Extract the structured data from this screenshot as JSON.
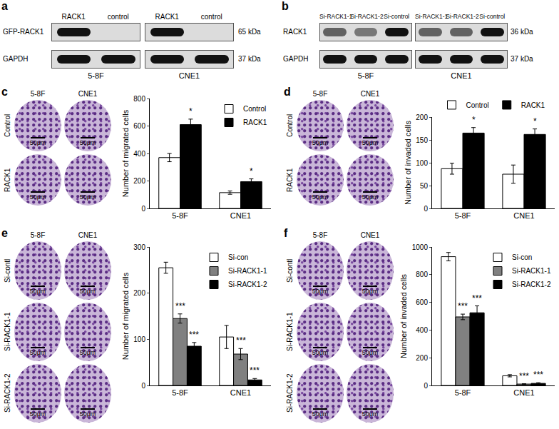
{
  "figure": {
    "panels": [
      {
        "letter": "a",
        "row_names": [
          "GFP-RACK1",
          "GAPDH"
        ],
        "sizes": [
          "65 kDa",
          "37 kDa"
        ],
        "blots": [
          {
            "cell_line": "5-8F",
            "lanes": [
              "RACK1",
              "control"
            ],
            "intensity": [
              [
                1,
                0
              ],
              [
                1,
                1
              ]
            ]
          },
          {
            "cell_line": "CNE1",
            "lanes": [
              "RACK1",
              "control"
            ],
            "intensity": [
              [
                1,
                0
              ],
              [
                1,
                1
              ]
            ]
          }
        ]
      },
      {
        "letter": "b",
        "row_names": [
          "RACK1",
          "GAPDH"
        ],
        "sizes": [
          "36 kDa",
          "37 kDa"
        ],
        "blots": [
          {
            "cell_line": "5-8F",
            "lanes": [
              "Si-RACK1-1",
              "Si-RACK1-2",
              "Si-control"
            ],
            "intensity": [
              [
                0.6,
                0.5,
                1
              ],
              [
                1,
                1,
                1
              ]
            ]
          },
          {
            "cell_line": "CNE1",
            "lanes": [
              "Si-RACK1-1",
              "Si-RACK1-2",
              "Si-control"
            ],
            "intensity": [
              [
                0.6,
                0.6,
                1
              ],
              [
                1,
                1,
                1
              ]
            ]
          }
        ]
      },
      {
        "letter": "c",
        "columns": [
          "5-8F",
          "CNE1"
        ],
        "rows": [
          "Control",
          "RACK1"
        ],
        "scale_bar": "50μm"
      },
      {
        "letter": "d",
        "columns": [
          "5-8F",
          "CNE1"
        ],
        "rows": [
          "Control",
          "RACK1"
        ],
        "scale_bar": "50μm"
      },
      {
        "letter": "e",
        "columns": [
          "5-8F",
          "CNE1"
        ],
        "rows": [
          "Si-contl",
          "Si-RACK1-1",
          "Si-RACK1-2"
        ],
        "scale_bar": "50μm"
      },
      {
        "letter": "f",
        "columns": [
          "5-8F",
          "CNE1"
        ],
        "rows": [
          "Si-contl",
          "Si-RACK1-1",
          "Si-RACK1-2"
        ],
        "scale_bar": "50μm"
      }
    ]
  },
  "chart_data": [
    {
      "type": "bar",
      "ylabel": "Number of migrated cells",
      "categories": [
        "5-8F",
        "CNE1"
      ],
      "series": [
        {
          "name": "Control",
          "color": "#ffffff",
          "values": [
            370,
            115
          ],
          "error": [
            30,
            12
          ]
        },
        {
          "name": "RACK1",
          "color": "#000000",
          "values": [
            610,
            195
          ],
          "error": [
            40,
            20
          ],
          "significance": "*"
        }
      ],
      "ylim": [
        0,
        800
      ],
      "yticks": [
        0,
        200,
        400,
        600,
        800
      ],
      "legend": "upper right"
    },
    {
      "type": "bar",
      "ylabel": "Number of invaded cells",
      "categories": [
        "5-8F",
        "CNE1"
      ],
      "series": [
        {
          "name": "Control",
          "color": "#ffffff",
          "values": [
            87,
            75
          ],
          "error": [
            12,
            20
          ]
        },
        {
          "name": "RACK1",
          "color": "#000000",
          "values": [
            165,
            162
          ],
          "error": [
            12,
            12
          ],
          "significance": "*"
        }
      ],
      "ylim": [
        0,
        200
      ],
      "yticks": [
        0,
        50,
        100,
        150,
        200
      ],
      "legend": "top"
    },
    {
      "type": "bar",
      "ylabel": "Number of migrated cells",
      "categories": [
        "5-8F",
        "CNE1"
      ],
      "series": [
        {
          "name": "Si-con",
          "color": "#ffffff",
          "values": [
            255,
            105
          ],
          "error": [
            12,
            25
          ]
        },
        {
          "name": "Si-RACK1-1",
          "color": "#808080",
          "values": [
            145,
            68
          ],
          "error": [
            10,
            12
          ],
          "significance": "***"
        },
        {
          "name": "Si-RACK1-2",
          "color": "#000000",
          "values": [
            85,
            12
          ],
          "error": [
            8,
            3
          ],
          "significance": "***"
        }
      ],
      "ylim": [
        0,
        300
      ],
      "yticks": [
        0,
        100,
        200,
        300
      ],
      "legend": "upper right"
    },
    {
      "type": "bar",
      "ylabel": "Number of invaded cells",
      "categories": [
        "5-8F",
        "CNE1"
      ],
      "series": [
        {
          "name": "Si-con",
          "color": "#ffffff",
          "values": [
            930,
            70
          ],
          "error": [
            30,
            8
          ]
        },
        {
          "name": "Si-RACK1-1",
          "color": "#808080",
          "values": [
            495,
            10
          ],
          "error": [
            20,
            3
          ],
          "significance": "***"
        },
        {
          "name": "Si-RACK1-2",
          "color": "#000000",
          "values": [
            525,
            15
          ],
          "error": [
            50,
            5
          ],
          "significance": "***"
        }
      ],
      "ylim": [
        0,
        1000
      ],
      "yticks": [
        0,
        200,
        400,
        600,
        800,
        1000
      ],
      "legend": "upper right"
    }
  ]
}
